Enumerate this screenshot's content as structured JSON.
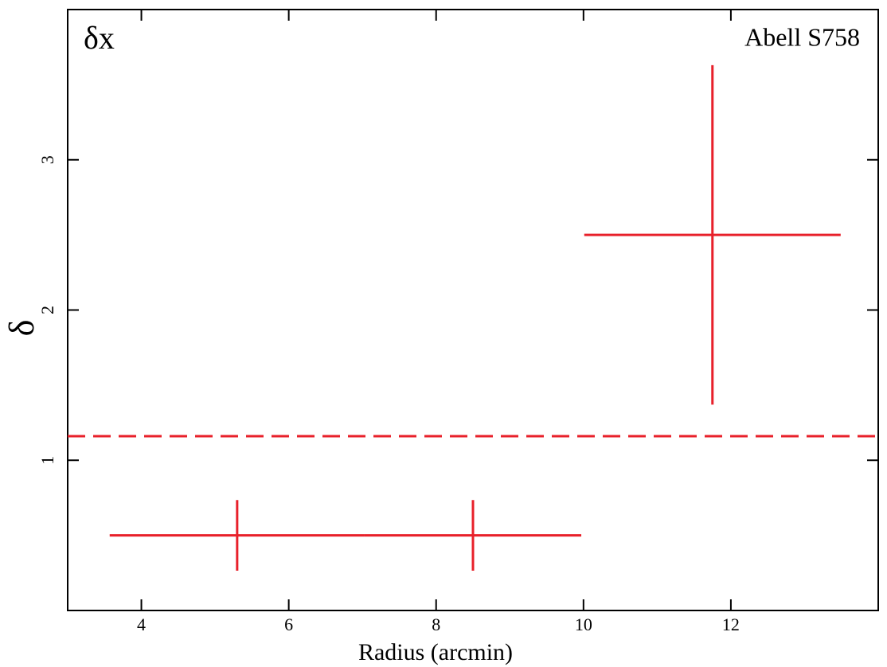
{
  "chart_data": {
    "type": "scatter",
    "xlabel": "Radius (arcmin)",
    "ylabel": "δ",
    "annotations": [
      {
        "text": "δx",
        "color": "#e8202a"
      },
      {
        "text": "Abell S758",
        "color": "#000000"
      }
    ],
    "series": [
      {
        "color": "#e8202a",
        "x": [
          5.3,
          8.5,
          11.75
        ],
        "xerr": [
          1.73,
          1.47,
          1.74
        ],
        "y": [
          0.5,
          0.5,
          2.5
        ],
        "yerr": [
          0.235,
          0.235,
          1.13
        ]
      }
    ],
    "hline": {
      "value": 1.16,
      "color": "#e8202a",
      "style": "dashed"
    },
    "xlim": [
      3,
      14
    ],
    "xticks": [
      4,
      6,
      8,
      10,
      12
    ],
    "ylim": [
      0,
      4
    ],
    "yticks": [
      1,
      2,
      3
    ]
  }
}
